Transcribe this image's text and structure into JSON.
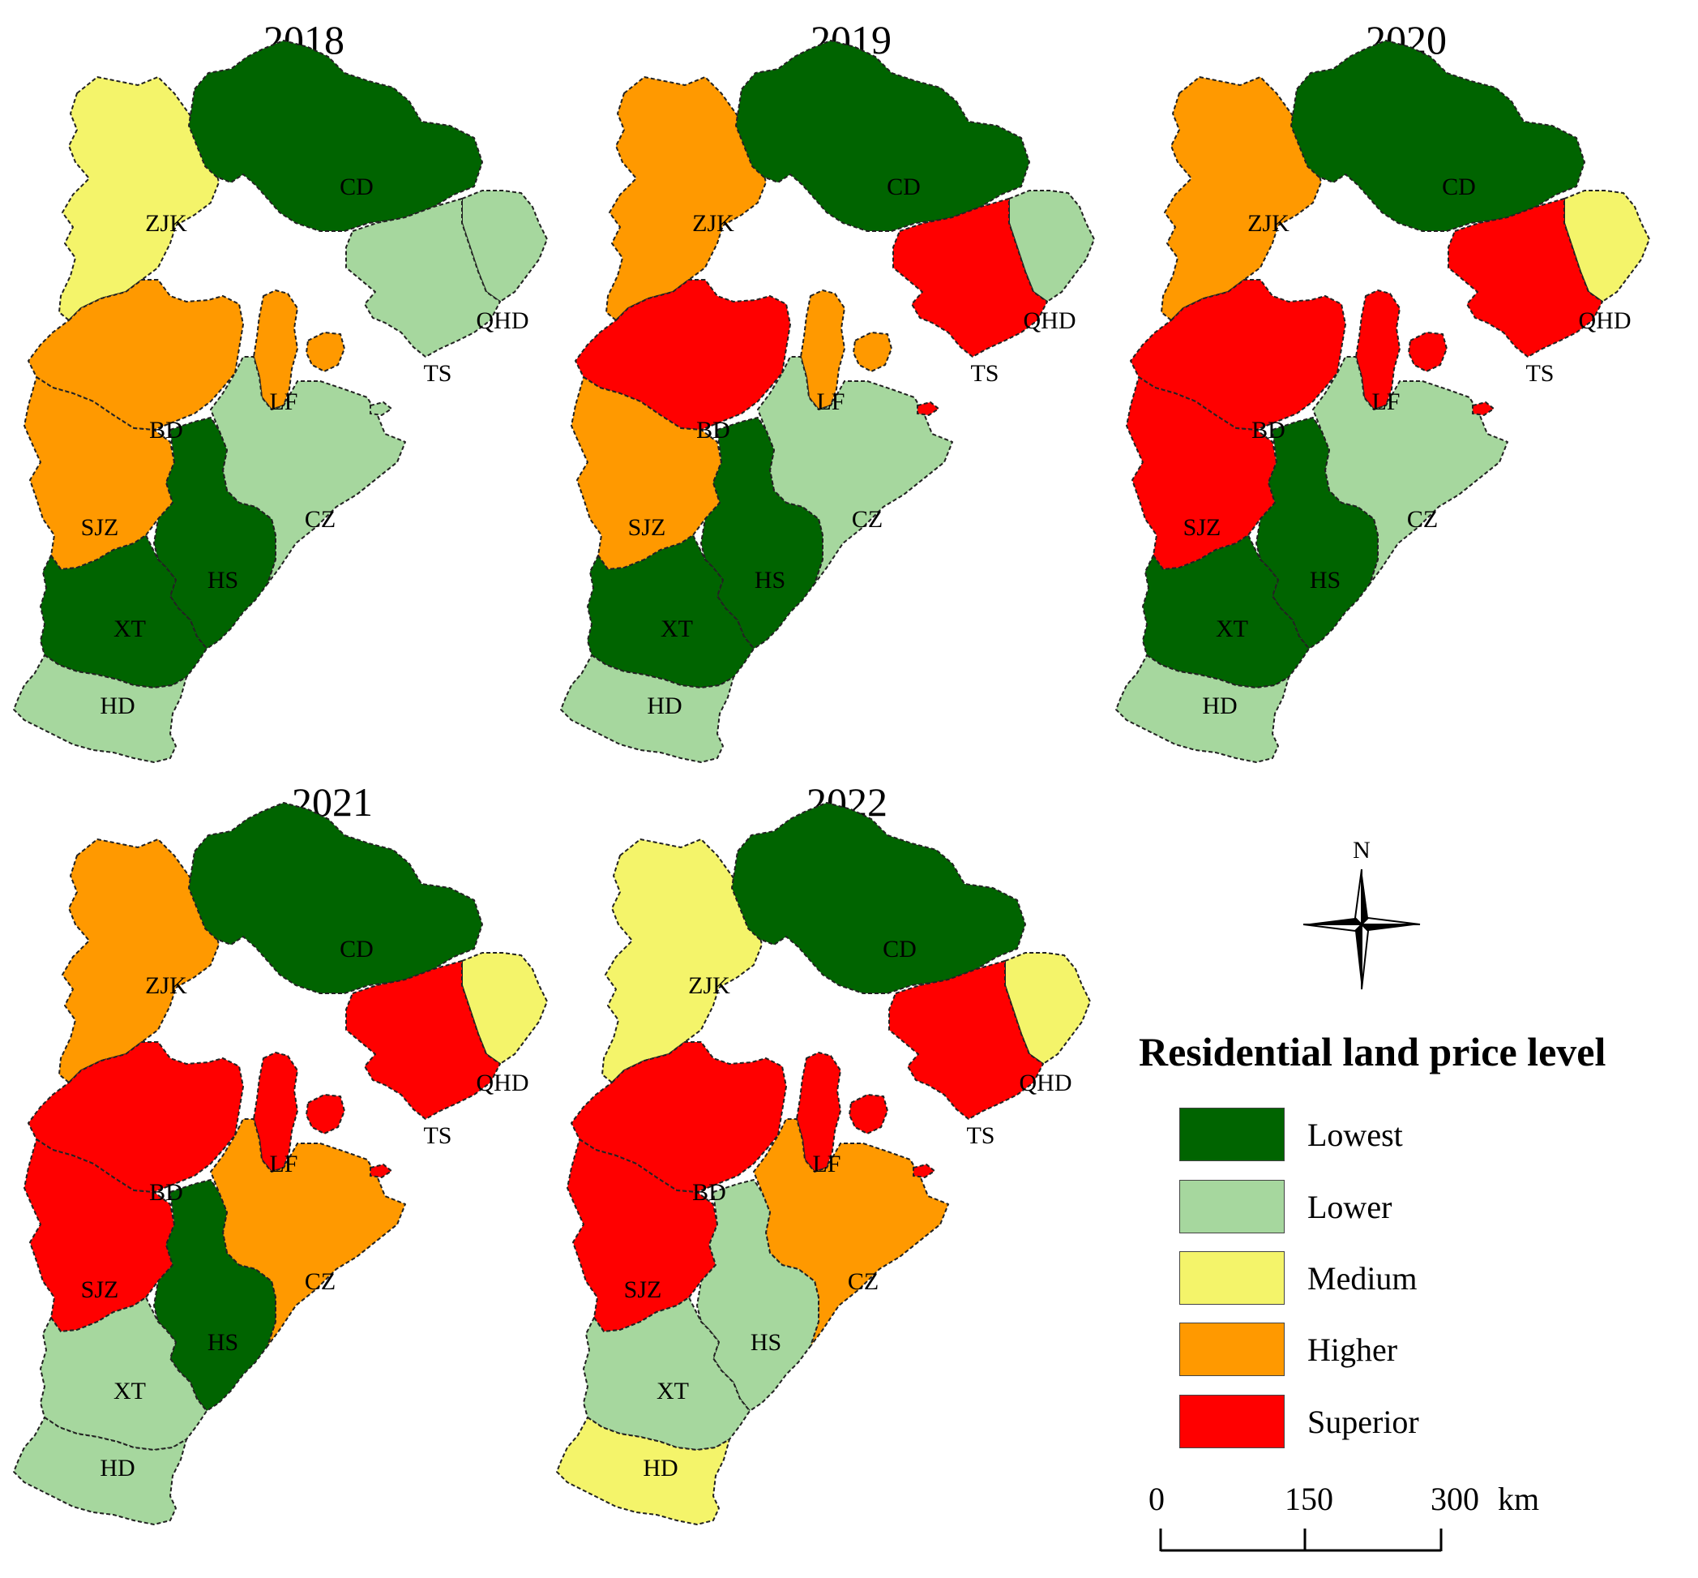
{
  "colors": {
    "Lowest": "#006400",
    "Lower": "#a6d79e",
    "Medium": "#f4f46a",
    "Higher": "#ff9900",
    "Superior": "#ff0000"
  },
  "region_labels": [
    "ZJK",
    "CD",
    "QHD",
    "TS",
    "BD",
    "LF",
    "CZ",
    "SJZ",
    "HS",
    "XT",
    "HD"
  ],
  "maps": [
    {
      "year": "2018",
      "levels": {
        "ZJK": "Medium",
        "CD": "Lowest",
        "QHD": "Lower",
        "TS": "Lower",
        "BD": "Higher",
        "LF": "Higher",
        "SJZ": "Higher",
        "CZ": "Lower",
        "HS": "Lowest",
        "XT": "Lowest",
        "HD": "Lower"
      }
    },
    {
      "year": "2019",
      "levels": {
        "ZJK": "Higher",
        "CD": "Lowest",
        "QHD": "Lower",
        "TS": "Superior",
        "BD": "Superior",
        "LF": "Higher",
        "SJZ": "Higher",
        "CZ": "Lower",
        "HS": "Lowest",
        "XT": "Lowest",
        "HD": "Lower"
      }
    },
    {
      "year": "2020",
      "levels": {
        "ZJK": "Higher",
        "CD": "Lowest",
        "QHD": "Medium",
        "TS": "Superior",
        "BD": "Superior",
        "LF": "Superior",
        "SJZ": "Superior",
        "CZ": "Lower",
        "HS": "Lowest",
        "XT": "Lowest",
        "HD": "Lower"
      }
    },
    {
      "year": "2021",
      "levels": {
        "ZJK": "Higher",
        "CD": "Lowest",
        "QHD": "Medium",
        "TS": "Superior",
        "BD": "Superior",
        "LF": "Superior",
        "SJZ": "Superior",
        "CZ": "Higher",
        "HS": "Lowest",
        "XT": "Lower",
        "HD": "Lower"
      }
    },
    {
      "year": "2022",
      "levels": {
        "ZJK": "Medium",
        "CD": "Lowest",
        "QHD": "Medium",
        "TS": "Superior",
        "BD": "Superior",
        "LF": "Superior",
        "SJZ": "Superior",
        "CZ": "Higher",
        "HS": "Lower",
        "XT": "Lower",
        "HD": "Medium"
      }
    }
  ],
  "compass": {
    "north_label": "N"
  },
  "legend": {
    "title": "Residential land price level",
    "items": [
      "Lowest",
      "Lower",
      "Medium",
      "Higher",
      "Superior"
    ]
  },
  "scale_bar": {
    "ticks": [
      "0",
      "150",
      "300"
    ],
    "unit": "km"
  }
}
